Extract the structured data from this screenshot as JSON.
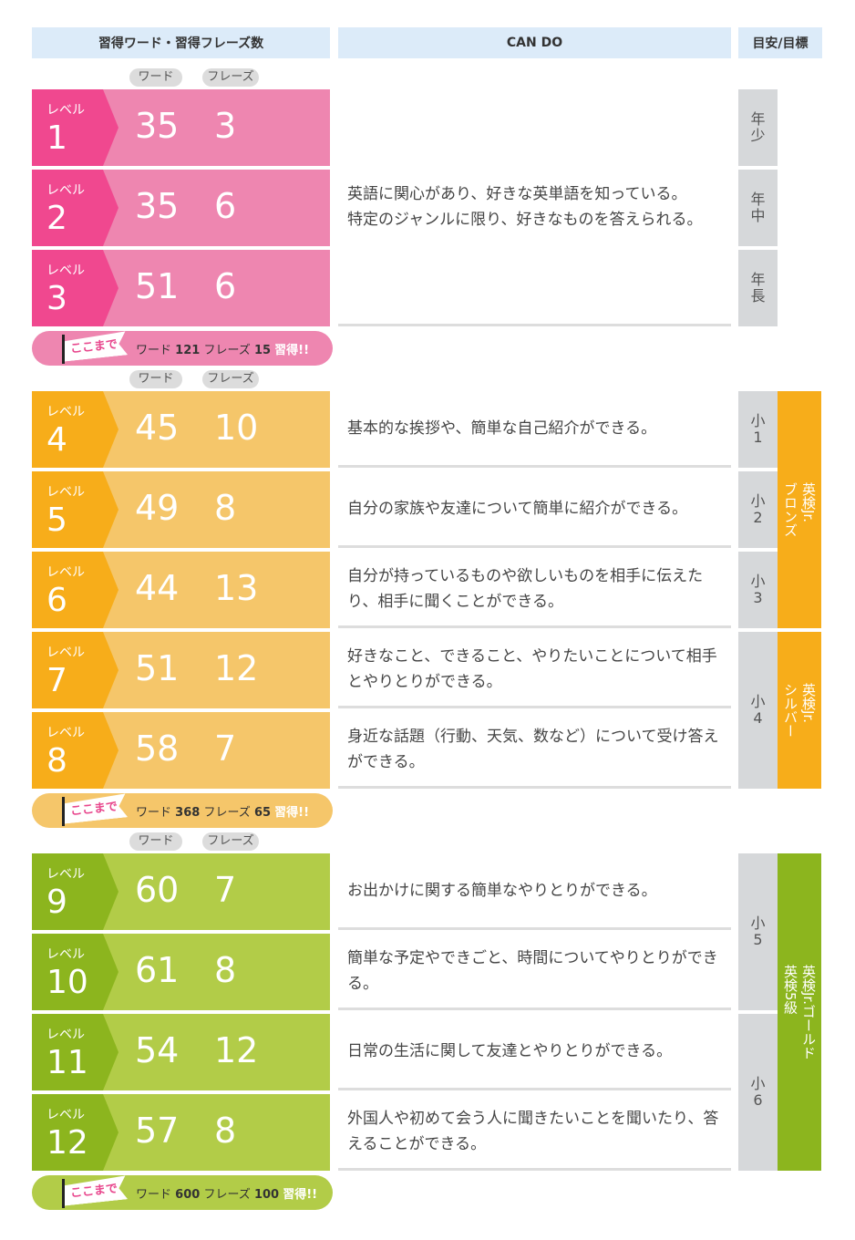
{
  "header": {
    "col1": "習得ワード・習得フレーズ数",
    "col2": "CAN DO",
    "col3": "目安/目標"
  },
  "pill_labels": {
    "word": "ワード",
    "phrase": "フレーズ"
  },
  "level_label": "レベル",
  "banner": {
    "flag": "ここまで",
    "word": "ワード",
    "phrase": "フレーズ",
    "acquired": "習得!!"
  },
  "colors": {
    "pink_dark": "#f0488f",
    "pink_light": "#ee86b0",
    "orange_dark": "#f7ad1a",
    "orange_light": "#f5c66a",
    "green_dark": "#8cb51e",
    "green_light": "#b2cc48",
    "header_bg": "#dcebf9",
    "grade_bg": "#d6d8da"
  },
  "sections": [
    {
      "theme": "pink",
      "levels": [
        {
          "level": "1",
          "words": "35",
          "phrases": "3"
        },
        {
          "level": "2",
          "words": "35",
          "phrases": "6"
        },
        {
          "level": "3",
          "words": "51",
          "phrases": "6"
        }
      ],
      "cando": [
        {
          "span": 3,
          "text": "英語に関心があり、好きな英単語を知っている。\n特定のジャンルに限り、好きなものを答えられる。"
        }
      ],
      "grades": [
        {
          "span": 1,
          "text": "年少"
        },
        {
          "span": 1,
          "text": "年中"
        },
        {
          "span": 1,
          "text": "年長"
        }
      ],
      "badges": [],
      "total": {
        "words": "121",
        "phrases": "15"
      }
    },
    {
      "theme": "orange",
      "levels": [
        {
          "level": "4",
          "words": "45",
          "phrases": "10"
        },
        {
          "level": "5",
          "words": "49",
          "phrases": "8"
        },
        {
          "level": "6",
          "words": "44",
          "phrases": "13"
        },
        {
          "level": "7",
          "words": "51",
          "phrases": "12"
        },
        {
          "level": "8",
          "words": "58",
          "phrases": "7"
        }
      ],
      "cando": [
        {
          "span": 1,
          "text": "基本的な挨拶や、簡単な自己紹介ができる。"
        },
        {
          "span": 1,
          "text": "自分の家族や友達について簡単に紹介ができる。"
        },
        {
          "span": 1,
          "text": "自分が持っているものや欲しいものを相手に伝えたり、相手に聞くことができる。"
        },
        {
          "span": 1,
          "text": "好きなこと、できること、やりたいことについて相手とやりとりができる。"
        },
        {
          "span": 1,
          "text": "身近な話題（行動、天気、数など）について受け答えができる。"
        }
      ],
      "grades": [
        {
          "span": 1,
          "text": "小1"
        },
        {
          "span": 1,
          "text": "小2"
        },
        {
          "span": 1,
          "text": "小3"
        },
        {
          "span": 2,
          "text": "小4"
        }
      ],
      "badges": [
        {
          "span": 3,
          "text": "英検Jr.\nブロンズ"
        },
        {
          "span": 2,
          "text": "英検Jr.\nシルバー"
        }
      ],
      "total": {
        "words": "368",
        "phrases": "65"
      }
    },
    {
      "theme": "green",
      "levels": [
        {
          "level": "9",
          "words": "60",
          "phrases": "7"
        },
        {
          "level": "10",
          "words": "61",
          "phrases": "8"
        },
        {
          "level": "11",
          "words": "54",
          "phrases": "12"
        },
        {
          "level": "12",
          "words": "57",
          "phrases": "8"
        }
      ],
      "cando": [
        {
          "span": 1,
          "text": "お出かけに関する簡単なやりとりができる。"
        },
        {
          "span": 1,
          "text": "簡単な予定やできごと、時間についてやりとりができる。"
        },
        {
          "span": 1,
          "text": "日常の生活に関して友達とやりとりができる。"
        },
        {
          "span": 1,
          "text": "外国人や初めて会う人に聞きたいことを聞いたり、答えることができる。"
        }
      ],
      "grades": [
        {
          "span": 2,
          "text": "小5"
        },
        {
          "span": 2,
          "text": "小6"
        }
      ],
      "badges": [
        {
          "span": 4,
          "text": "英検Jr.ゴールド\n英検5級"
        }
      ],
      "total": {
        "words": "600",
        "phrases": "100"
      }
    }
  ]
}
